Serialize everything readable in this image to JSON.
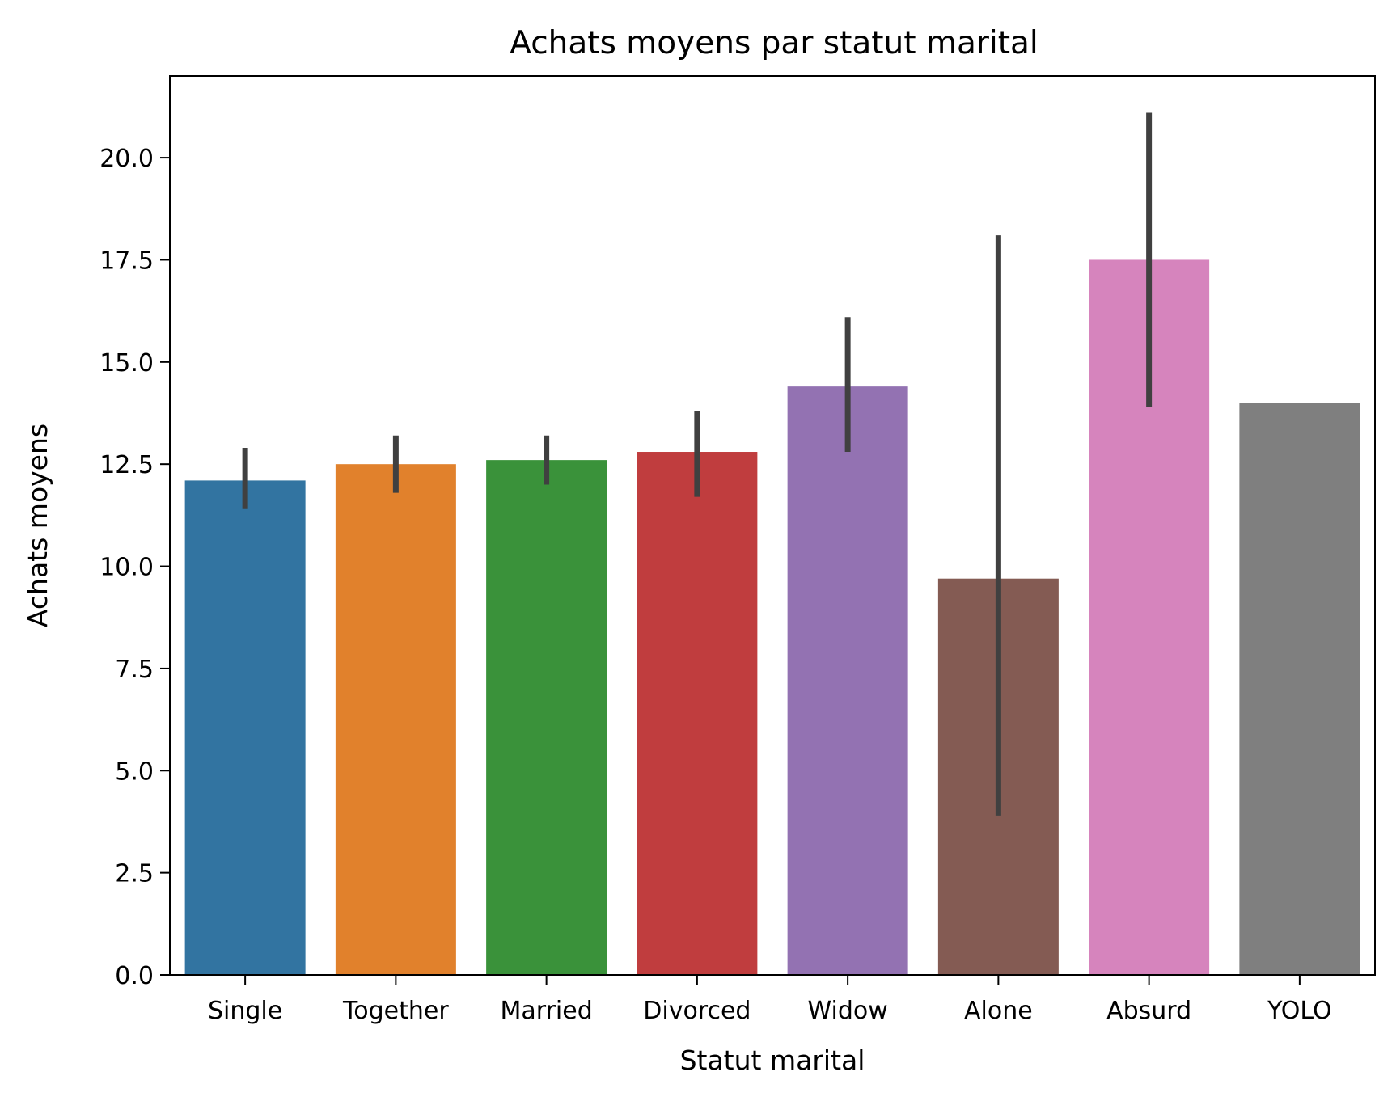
{
  "chart_data": {
    "type": "bar",
    "title": "Achats moyens par statut marital",
    "xlabel": "Statut marital",
    "ylabel": "Achats moyens",
    "categories": [
      "Single",
      "Together",
      "Married",
      "Divorced",
      "Widow",
      "Alone",
      "Absurd",
      "YOLO"
    ],
    "values": [
      12.1,
      12.5,
      12.6,
      12.8,
      14.4,
      9.7,
      17.5,
      14.0
    ],
    "error_low": [
      11.4,
      11.8,
      12.0,
      11.7,
      12.8,
      3.9,
      13.9,
      14.0
    ],
    "error_high": [
      12.9,
      13.2,
      13.2,
      13.8,
      16.1,
      18.1,
      21.1,
      14.0
    ],
    "colors": [
      "#3274a1",
      "#e1812c",
      "#3a923a",
      "#c03d3e",
      "#9372b2",
      "#845b53",
      "#d684bd",
      "#7f7f7f"
    ],
    "error_color": "#404040",
    "ylim": [
      0,
      22
    ],
    "yticks": [
      0.0,
      2.5,
      5.0,
      7.5,
      10.0,
      12.5,
      15.0,
      17.5,
      20.0
    ],
    "ytick_labels": [
      "0.0",
      "2.5",
      "5.0",
      "7.5",
      "10.0",
      "12.5",
      "15.0",
      "17.5",
      "20.0"
    ],
    "grid": false,
    "legend": "none"
  }
}
